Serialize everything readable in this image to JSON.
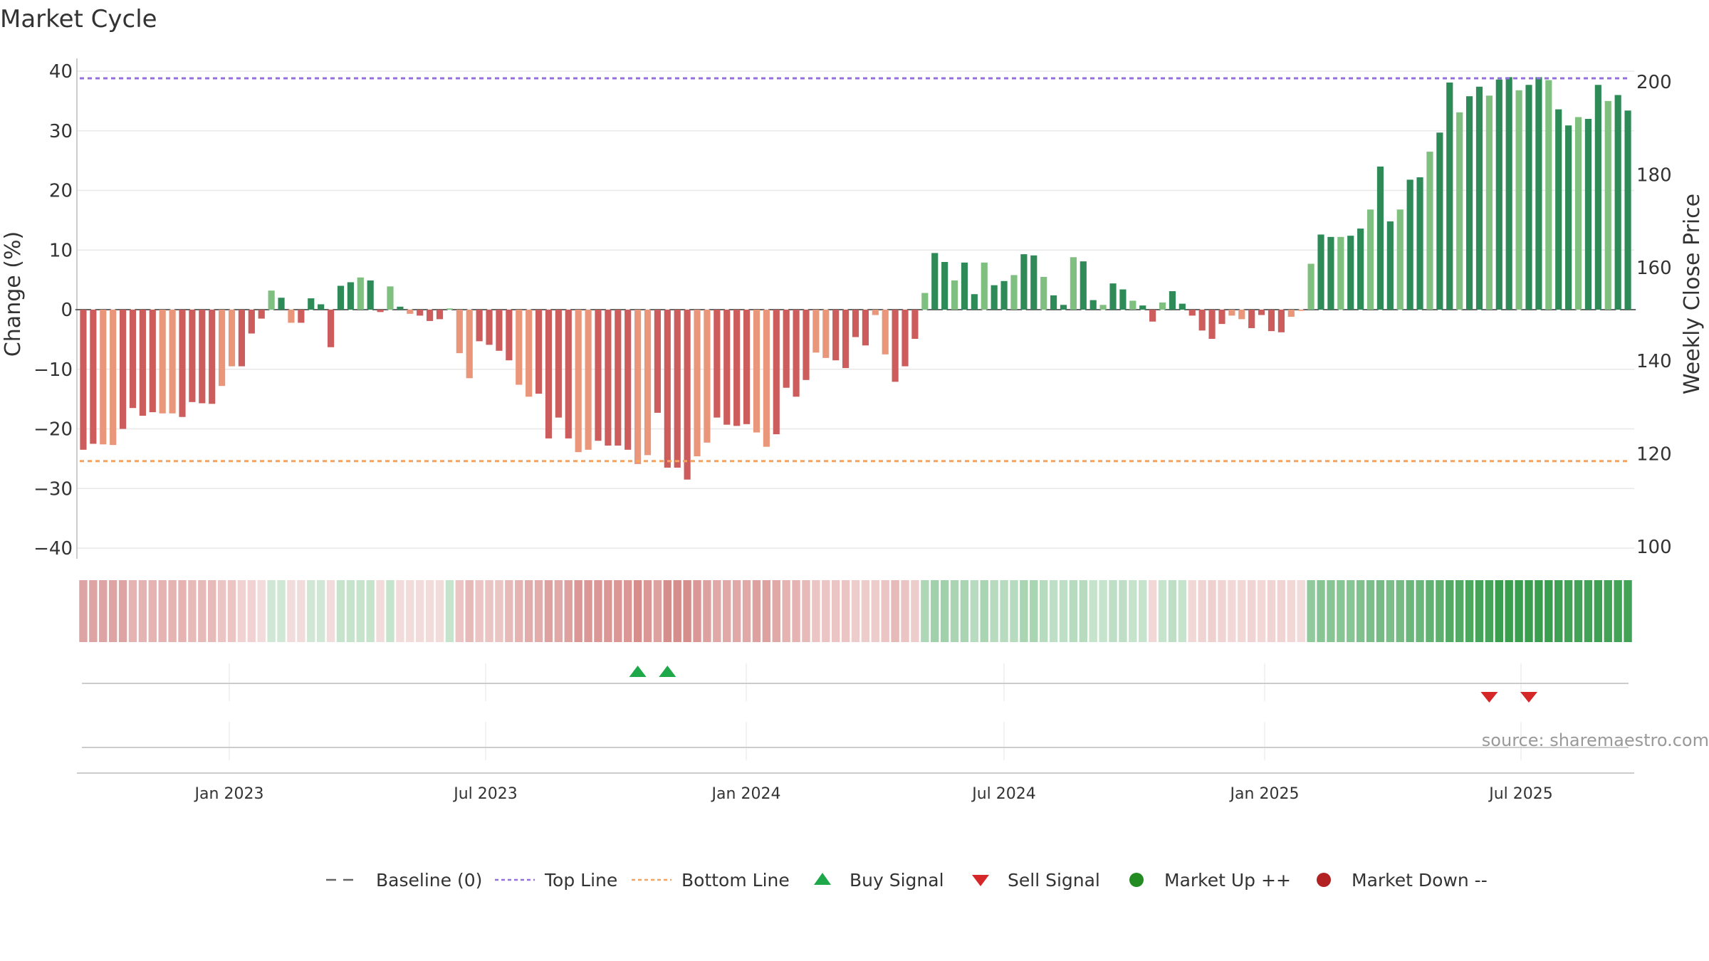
{
  "colors": {
    "bar_red": "#cd5c5c",
    "bar_salmon": "#e9967a",
    "bar_dark_green": "#2e8b57",
    "bar_light_green": "#7fbf7f",
    "top_line": "#9370db",
    "bottom_line": "#f4a460",
    "baseline": "#666666",
    "buy": "#1fa84a",
    "sell": "#d62728",
    "market_up": "#228b22",
    "market_down": "#b22222",
    "grid": "#e8e8e8"
  },
  "chart_data": {
    "type": "bar",
    "title": "Market Cycle",
    "ylabel": "Change (%)",
    "y2label": "Weekly Close Price",
    "ylim": [
      -40,
      40
    ],
    "y2lim": [
      100,
      200
    ],
    "yticks": [
      "40",
      "30",
      "20",
      "10",
      "0",
      "−10",
      "−20",
      "−30",
      "−40"
    ],
    "y2ticks": [
      "200",
      "180",
      "160",
      "140",
      "120",
      "100"
    ],
    "top_line": 38.8,
    "bottom_line": -25.4,
    "date_ticks": [
      "Jan 2023",
      "Jul 2023",
      "Jan 2024",
      "Jul 2024",
      "Jan 2025",
      "Jul 2025"
    ],
    "values": [
      -23.5,
      -22.5,
      -22.6,
      -22.7,
      -20.0,
      -16.5,
      -17.8,
      -17.2,
      -17.4,
      -17.4,
      -18.0,
      -15.5,
      -15.7,
      -15.8,
      -12.8,
      -9.5,
      -9.5,
      -4.0,
      -1.5,
      3.2,
      2.0,
      -2.2,
      -2.2,
      1.9,
      0.9,
      -6.3,
      4.0,
      4.6,
      5.4,
      4.9,
      -0.4,
      3.9,
      0.5,
      -0.7,
      -1.0,
      -1.9,
      -1.6,
      0.2,
      -7.3,
      -11.5,
      -5.3,
      -5.9,
      -6.9,
      -8.5,
      -12.6,
      -14.6,
      -14.1,
      -21.6,
      -18.1,
      -21.6,
      -23.9,
      -23.5,
      -22.0,
      -22.8,
      -22.8,
      -23.5,
      -25.9,
      -24.4,
      -17.3,
      -26.5,
      -26.5,
      -28.5,
      -24.6,
      -22.3,
      -18.1,
      -19.3,
      -19.5,
      -19.2,
      -20.6,
      -23.0,
      -20.9,
      -13.1,
      -14.6,
      -11.8,
      -7.2,
      -8.1,
      -8.5,
      -9.8,
      -4.6,
      -6.0,
      -0.9,
      -7.5,
      -12.1,
      -9.5,
      -4.9,
      2.8,
      9.5,
      8.0,
      4.9,
      7.9,
      2.6,
      7.9,
      4.1,
      4.8,
      5.8,
      9.3,
      9.1,
      5.5,
      2.4,
      0.8,
      8.8,
      8.1,
      1.6,
      0.8,
      4.4,
      3.4,
      1.5,
      0.7,
      -2.0,
      1.2,
      3.1,
      1.0,
      -1.0,
      -3.5,
      -4.9,
      -2.4,
      -1.0,
      -1.6,
      -3.1,
      -0.9,
      -3.6,
      -3.8,
      -1.2,
      -0.2,
      7.7,
      12.6,
      12.2,
      12.2,
      12.4,
      13.6,
      16.8,
      24.0,
      14.8,
      16.8,
      21.8,
      22.2,
      26.5,
      29.7,
      38.1,
      33.1,
      35.8,
      37.4,
      35.9,
      38.6,
      39.0,
      36.8,
      37.7,
      39.0,
      38.5,
      33.6,
      30.9,
      32.3,
      32.0,
      37.7,
      35.0,
      36.0,
      33.4
    ],
    "buy_signals": [
      56,
      59
    ],
    "sell_signals": [
      142,
      146
    ],
    "regime_intensity": [
      -0.38,
      -0.38,
      -0.38,
      -0.38,
      -0.38,
      -0.3,
      -0.3,
      -0.3,
      -0.3,
      -0.3,
      -0.3,
      -0.26,
      -0.26,
      -0.26,
      -0.2,
      -0.2,
      -0.13,
      -0.13,
      -0.08,
      0.12,
      0.12,
      -0.08,
      -0.08,
      0.12,
      0.12,
      -0.08,
      0.16,
      0.16,
      0.16,
      0.16,
      -0.08,
      0.16,
      -0.08,
      -0.08,
      -0.08,
      -0.08,
      -0.08,
      0.16,
      -0.2,
      -0.26,
      -0.2,
      -0.2,
      -0.2,
      -0.26,
      -0.3,
      -0.34,
      -0.34,
      -0.4,
      -0.36,
      -0.4,
      -0.45,
      -0.45,
      -0.45,
      -0.45,
      -0.45,
      -0.45,
      -0.5,
      -0.45,
      -0.4,
      -0.5,
      -0.5,
      -0.5,
      -0.45,
      -0.4,
      -0.36,
      -0.36,
      -0.36,
      -0.36,
      -0.4,
      -0.4,
      -0.36,
      -0.3,
      -0.3,
      -0.26,
      -0.2,
      -0.2,
      -0.2,
      -0.2,
      -0.16,
      -0.16,
      -0.16,
      -0.2,
      -0.26,
      -0.2,
      -0.16,
      0.28,
      0.34,
      0.34,
      0.3,
      0.3,
      0.24,
      0.3,
      0.24,
      0.24,
      0.24,
      0.3,
      0.3,
      0.24,
      0.2,
      0.2,
      0.24,
      0.24,
      0.16,
      0.16,
      0.2,
      0.2,
      0.16,
      0.16,
      -0.1,
      0.16,
      0.2,
      0.16,
      -0.1,
      -0.12,
      -0.14,
      -0.12,
      -0.1,
      -0.1,
      -0.12,
      -0.1,
      -0.12,
      -0.12,
      -0.1,
      -0.08,
      0.42,
      0.46,
      0.46,
      0.46,
      0.46,
      0.5,
      0.52,
      0.55,
      0.52,
      0.55,
      0.6,
      0.6,
      0.64,
      0.66,
      0.72,
      0.72,
      0.75,
      0.78,
      0.78,
      0.85,
      0.85,
      0.85,
      0.85,
      0.85,
      0.85,
      0.82,
      0.8,
      0.8,
      0.8,
      0.82,
      0.8,
      0.8,
      0.8
    ]
  },
  "source_text": "source: sharemaestro.com",
  "legend": [
    {
      "key": "baseline",
      "label": "Baseline (0)",
      "icon": "dash-line-icon"
    },
    {
      "key": "top",
      "label": "Top Line",
      "icon": "dotted-line-icon"
    },
    {
      "key": "bottom",
      "label": "Bottom Line",
      "icon": "dotted-line-icon"
    },
    {
      "key": "buy",
      "label": "Buy Signal",
      "icon": "triangle-up-icon"
    },
    {
      "key": "sell",
      "label": "Sell Signal",
      "icon": "triangle-down-icon"
    },
    {
      "key": "up",
      "label": "Market Up ++",
      "icon": "circle-icon"
    },
    {
      "key": "down",
      "label": "Market Down --",
      "icon": "circle-icon"
    }
  ]
}
